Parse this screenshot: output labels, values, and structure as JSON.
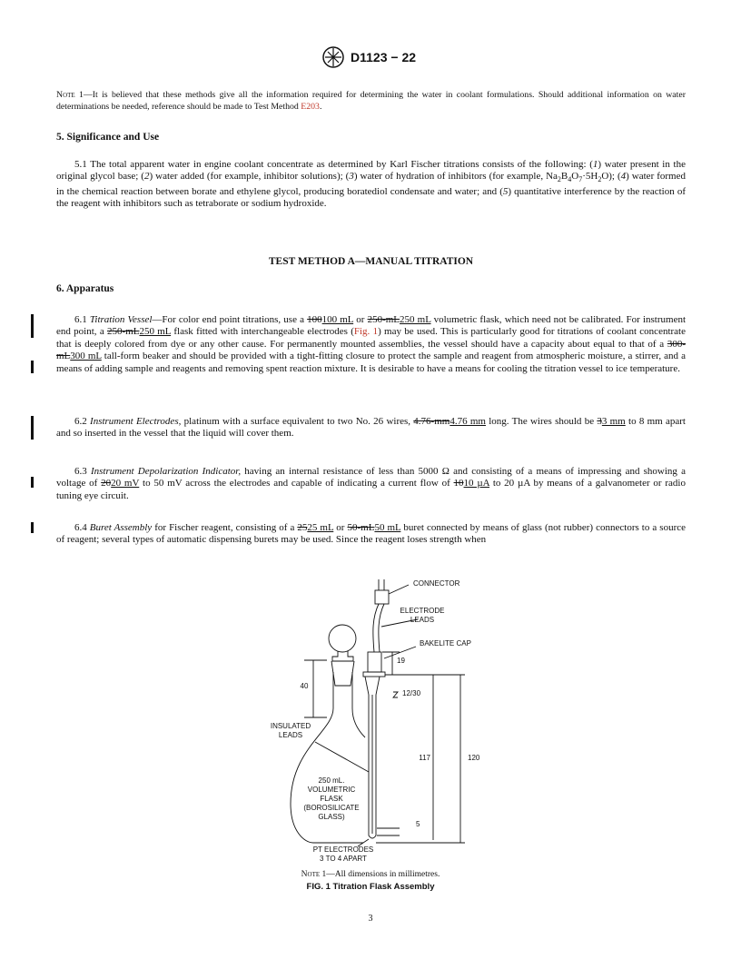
{
  "header": {
    "designation": "D1123 − 22"
  },
  "note": {
    "label": "Note 1",
    "runs": [
      "—It is believed that these methods give all the information required for determining the water in coolant formulations. Should additional information on water determinations be needed, reference should be made to Test Method ",
      {
        "link": "E203"
      },
      "."
    ]
  },
  "section_5": {
    "heading": "5. Significance and Use",
    "paragraphs": [
      [
        "5.1 The total apparent water in engine coolant concentrate as determined by Karl Fischer titrations consists of the following: (",
        {
          "em": "1"
        },
        ") water present in the original glycol base; (",
        {
          "em": "2"
        },
        ") water added (for example, inhibitor solutions); (",
        {
          "em": "3"
        },
        ") water of hydration of inhibitors (for example, Na",
        {
          "sub": "2"
        },
        "B",
        {
          "sub": "4"
        },
        "O",
        {
          "sub": "7"
        },
        "·5H",
        {
          "sub": "2"
        },
        "O); (",
        {
          "em": "4"
        },
        ") water formed in the chemical reaction between borate and ethylene glycol, producing boratediol condensate and water; and (",
        {
          "em": "5"
        },
        ") quantitative interference by the reaction of the reagent with inhibitors such as tetraborate or sodium hydroxide."
      ]
    ]
  },
  "method_title": "TEST METHOD A—MANUAL TITRATION",
  "section_6": {
    "heading": "6. Apparatus",
    "paragraphs": [
      [
        "6.1 ",
        {
          "em": "Titration Vessel"
        },
        "—For color end point titrations, use a ",
        {
          "strike": "100"
        },
        {
          "ins": "100 mL"
        },
        " or ",
        {
          "strike": "250-mL"
        },
        {
          "ins": "250 mL"
        },
        " volumetric flask, which need not be calibrated. For instrument end point, a ",
        {
          "strike": "250-mL"
        },
        {
          "ins": "250 mL"
        },
        " flask fitted with interchangeable electrodes (",
        {
          "link": "Fig. 1"
        },
        ") may be used. This is particularly good for titrations of coolant concentrate that is deeply colored from dye or any other cause. For permanently mounted assemblies, the vessel should have a capacity about equal to that of a ",
        {
          "strike": "300-mL"
        },
        {
          "ins": "300 mL"
        },
        " tall-form beaker and should be provided with a tight-fitting closure to protect the sample and reagent from atmospheric moisture, a stirrer, and a means of adding sample and reagents and removing spent reaction mixture. It is desirable to have a means for cooling the titration vessel to ice temperature."
      ],
      [
        "6.2 ",
        {
          "em": "Instrument Electrodes,"
        },
        " platinum with a surface equivalent to two No. 26 wires, ",
        {
          "strike": "4.76-mm"
        },
        {
          "ins": "4.76 mm"
        },
        " long. The wires should be ",
        {
          "strike": "3"
        },
        {
          "ins": "3 mm"
        },
        " to 8 mm apart and so inserted in the vessel that the liquid will cover them."
      ],
      [
        "6.3 ",
        {
          "em": "Instrument Depolarization Indicator,"
        },
        " having an internal resistance of less than 5000 Ω and consisting of a means of impressing and showing a voltage of ",
        {
          "strike": "20"
        },
        {
          "ins": "20 mV"
        },
        " to 50 mV across the electrodes and capable of indicating a current flow of ",
        {
          "strike": "10"
        },
        {
          "ins": "10 µA"
        },
        " to 20 µA by means of a galvanometer or radio tuning eye circuit."
      ],
      [
        "6.4 ",
        {
          "em": "Buret Assembly"
        },
        " for Fischer reagent, consisting of a ",
        {
          "strike": "25"
        },
        {
          "ins": "25 mL"
        },
        " or ",
        {
          "strike": "50-mL"
        },
        {
          "ins": "50 mL"
        },
        " buret connected by means of glass (not rubber) connectors to a source of reagent; several types of automatic dispensing burets may be used. Since the reagent loses strength when"
      ]
    ]
  },
  "figure": {
    "labels": {
      "connector": [
        "CONNECTOR"
      ],
      "electrode_leads": [
        "ELECTRODE",
        "LEADS"
      ],
      "bakelite_cap": [
        "BAKELITE CAP"
      ],
      "dim_19": [
        "19"
      ],
      "dim_40": [
        "40"
      ],
      "joint": [
        "12/30"
      ],
      "insulated_leads": [
        "INSULATED",
        "LEADS"
      ],
      "dim_117": [
        "117"
      ],
      "dim_120": [
        "120"
      ],
      "flask": [
        "250 mL.",
        "VOLUMETRIC",
        "FLASK",
        "(BOROSILICATE",
        "GLASS)"
      ],
      "dim_5": [
        "5"
      ],
      "pt_electrodes": [
        "PT ELECTRODES",
        "3 TO 4   APART"
      ]
    },
    "note_label": "Note 1",
    "note": "—All dimensions in millimetres.",
    "caption": "FIG. 1 Titration Flask Assembly"
  },
  "page_number": "3"
}
